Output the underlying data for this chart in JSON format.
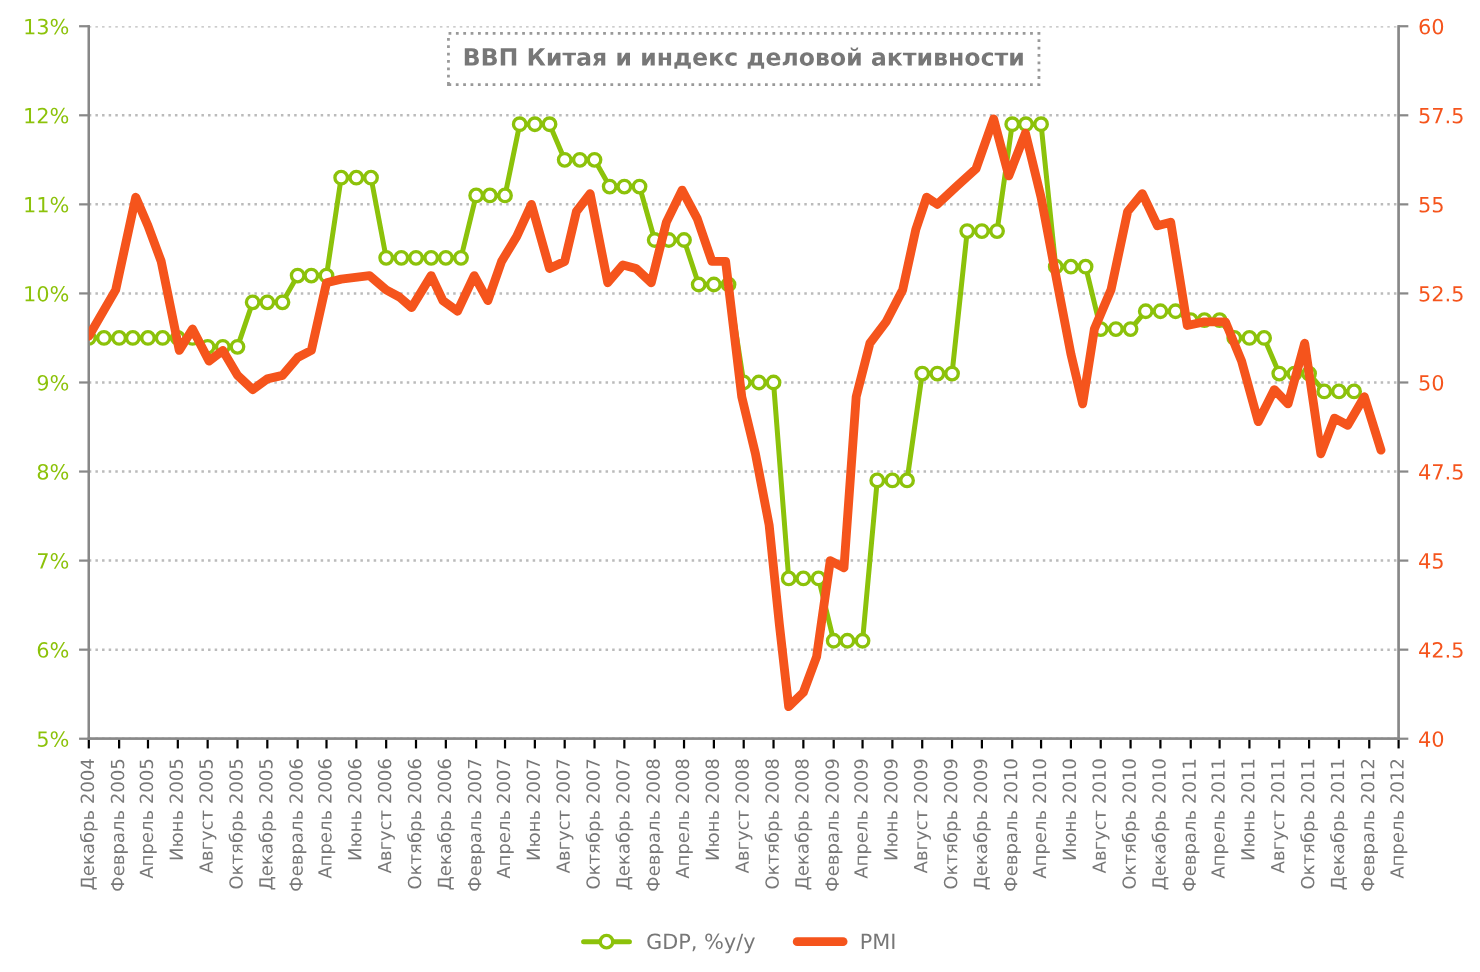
{
  "chart_data": {
    "type": "line",
    "title": "ВВП Китая и индекс деловой активности",
    "xlim": [
      "2004-12",
      "2012-04"
    ],
    "xticks": [
      {
        "value": "2004-12",
        "label": "Декабрь 2004"
      },
      {
        "value": "2005-02",
        "label": "Февраль 2005"
      },
      {
        "value": "2005-04",
        "label": "Апрель 2005"
      },
      {
        "value": "2005-06",
        "label": "Июнь 2005"
      },
      {
        "value": "2005-08",
        "label": "Август 2005"
      },
      {
        "value": "2005-10",
        "label": "Октябрь 2005"
      },
      {
        "value": "2005-12",
        "label": "Декабрь 2005"
      },
      {
        "value": "2006-02",
        "label": "Февраль 2006"
      },
      {
        "value": "2006-04",
        "label": "Апрель 2006"
      },
      {
        "value": "2006-06",
        "label": "Июнь 2006"
      },
      {
        "value": "2006-08",
        "label": "Август 2006"
      },
      {
        "value": "2006-10",
        "label": "Октябрь 2006"
      },
      {
        "value": "2006-12",
        "label": "Декабрь 2006"
      },
      {
        "value": "2007-02",
        "label": "Февраль 2007"
      },
      {
        "value": "2007-04",
        "label": "Апрель 2007"
      },
      {
        "value": "2007-06",
        "label": "Июнь 2007"
      },
      {
        "value": "2007-08",
        "label": "Август 2007"
      },
      {
        "value": "2007-10",
        "label": "Октябрь 2007"
      },
      {
        "value": "2007-12",
        "label": "Декабрь 2007"
      },
      {
        "value": "2008-02",
        "label": "Февраль 2008"
      },
      {
        "value": "2008-04",
        "label": "Апрель 2008"
      },
      {
        "value": "2008-06",
        "label": "Июнь 2008"
      },
      {
        "value": "2008-08",
        "label": "Август 2008"
      },
      {
        "value": "2008-10",
        "label": "Октябрь 2008"
      },
      {
        "value": "2008-12",
        "label": "Декабрь 2008"
      },
      {
        "value": "2009-02",
        "label": "Февраль 2009"
      },
      {
        "value": "2009-04",
        "label": "Апрель 2009"
      },
      {
        "value": "2009-06",
        "label": "Июнь 2009"
      },
      {
        "value": "2009-08",
        "label": "Август 2009"
      },
      {
        "value": "2009-10",
        "label": "Октябрь 2009"
      },
      {
        "value": "2009-12",
        "label": "Декабрь 2009"
      },
      {
        "value": "2010-02",
        "label": "Февраль 2010"
      },
      {
        "value": "2010-04",
        "label": "Апрель 2010"
      },
      {
        "value": "2010-06",
        "label": "Июнь 2010"
      },
      {
        "value": "2010-08",
        "label": "Август 2010"
      },
      {
        "value": "2010-10",
        "label": "Октябрь 2010"
      },
      {
        "value": "2010-12",
        "label": "Декабрь 2010"
      },
      {
        "value": "2011-02",
        "label": "Февраль 2011"
      },
      {
        "value": "2011-04",
        "label": "Апрель 2011"
      },
      {
        "value": "2011-06",
        "label": "Июнь 2011"
      },
      {
        "value": "2011-08",
        "label": "Август 2011"
      },
      {
        "value": "2011-10",
        "label": "Октябрь 2011"
      },
      {
        "value": "2011-12",
        "label": "Декабрь 2011"
      },
      {
        "value": "2012-02",
        "label": "Февраль 2012"
      },
      {
        "value": "2012-04",
        "label": "Апрель 2012"
      }
    ],
    "ylim": [
      5,
      13
    ],
    "yticks": [
      {
        "value": 5,
        "label": "5%"
      },
      {
        "value": 6,
        "label": "6%"
      },
      {
        "value": 7,
        "label": "7%"
      },
      {
        "value": 8,
        "label": "8%"
      },
      {
        "value": 9,
        "label": "9%"
      },
      {
        "value": 10,
        "label": "10%"
      },
      {
        "value": 11,
        "label": "11%"
      },
      {
        "value": 12,
        "label": "12%"
      },
      {
        "value": 13,
        "label": "13%"
      }
    ],
    "y2lim": [
      40,
      60
    ],
    "y2ticks": [
      40,
      42.5,
      45,
      47.5,
      50,
      52.5,
      55,
      57.5,
      60
    ],
    "grid": "y",
    "legend": "bottom",
    "series": [
      {
        "name": "GDP, %y/y",
        "color": "#8cc20a",
        "marker": "circle",
        "x": [
          "2004-12",
          "2005-01",
          "2005-02",
          "2005-03",
          "2005-04",
          "2005-05",
          "2005-06",
          "2005-07",
          "2005-08",
          "2005-09",
          "2005-10",
          "2005-11",
          "2005-12",
          "2006-01",
          "2006-02",
          "2006-03",
          "2006-04",
          "2006-05",
          "2006-06",
          "2006-07",
          "2006-08",
          "2006-09",
          "2006-10",
          "2006-11",
          "2006-12",
          "2007-01",
          "2007-02",
          "2007-03",
          "2007-04",
          "2007-05",
          "2007-06",
          "2007-07",
          "2007-08",
          "2007-09",
          "2007-10",
          "2007-11",
          "2007-12",
          "2008-01",
          "2008-02",
          "2008-03",
          "2008-04",
          "2008-05",
          "2008-06",
          "2008-07",
          "2008-08",
          "2008-09",
          "2008-10",
          "2008-11",
          "2008-12",
          "2009-01",
          "2009-02",
          "2009-03",
          "2009-04",
          "2009-05",
          "2009-06",
          "2009-07",
          "2009-08",
          "2009-09",
          "2009-10",
          "2009-11",
          "2009-12",
          "2010-01",
          "2010-02",
          "2010-03",
          "2010-04",
          "2010-05",
          "2010-06",
          "2010-07",
          "2010-08",
          "2010-09",
          "2010-10",
          "2010-11",
          "2010-12",
          "2011-01",
          "2011-02",
          "2011-03",
          "2011-04",
          "2011-05",
          "2011-06",
          "2011-07",
          "2011-08",
          "2011-09",
          "2011-10",
          "2011-11",
          "2011-12",
          "2012-01"
        ],
        "values": [
          9.5,
          9.5,
          9.5,
          9.5,
          9.5,
          9.5,
          9.5,
          9.5,
          9.4,
          9.4,
          9.4,
          9.9,
          9.9,
          9.9,
          10.2,
          10.2,
          10.2,
          11.3,
          11.3,
          11.3,
          10.4,
          10.4,
          10.4,
          10.4,
          10.4,
          10.4,
          11.1,
          11.1,
          11.1,
          11.9,
          11.9,
          11.9,
          11.5,
          11.5,
          11.5,
          11.2,
          11.2,
          11.2,
          10.6,
          10.6,
          10.6,
          10.1,
          10.1,
          10.1,
          9.0,
          9.0,
          9.0,
          6.8,
          6.8,
          6.8,
          6.1,
          6.1,
          6.1,
          7.9,
          7.9,
          7.9,
          9.1,
          9.1,
          9.1,
          10.7,
          10.7,
          10.7,
          11.9,
          11.9,
          11.9,
          10.3,
          10.3,
          10.3,
          9.6,
          9.6,
          9.6,
          9.8,
          9.8,
          9.8,
          9.7,
          9.7,
          9.7,
          9.5,
          9.5,
          9.5,
          9.1,
          9.1,
          9.1,
          8.9,
          8.9,
          8.9
        ]
      },
      {
        "name": "PMI",
        "color": "#f5541c",
        "axis": "y2",
        "x": [
          "2004-12-01",
          "2005-01-25",
          "2005-03-07",
          "2005-04-01",
          "2005-04-28",
          "2005-06-04",
          "2005-07-01",
          "2005-08-04",
          "2005-09-01",
          "2005-10-01",
          "2005-11-01",
          "2005-12-01",
          "2006-01-01",
          "2006-02-01",
          "2006-03-01",
          "2006-04-01",
          "2006-05-01",
          "2006-06-28",
          "2006-08-01",
          "2006-08-28",
          "2006-09-22",
          "2006-11-01",
          "2006-11-25",
          "2006-12-25",
          "2007-01-28",
          "2007-02-25",
          "2007-03-25",
          "2007-04-25",
          "2007-05-25",
          "2007-07-01",
          "2007-08-01",
          "2007-08-25",
          "2007-09-22",
          "2007-10-28",
          "2007-11-28",
          "2007-12-25",
          "2008-01-25",
          "2008-02-25",
          "2008-03-28",
          "2008-04-28",
          "2008-05-28",
          "2008-06-25",
          "2008-07-28",
          "2008-08-25",
          "2008-09-22",
          "2008-10-13",
          "2008-11-01",
          "2008-12-01",
          "2008-12-28",
          "2009-01-25",
          "2009-02-22",
          "2009-03-19",
          "2009-04-16",
          "2009-05-19",
          "2009-06-22",
          "2009-07-19",
          "2009-08-10",
          "2009-09-01",
          "2009-10-10",
          "2009-11-19",
          "2009-12-25",
          "2010-01-25",
          "2010-02-28",
          "2010-04-01",
          "2010-05-04",
          "2010-06-01",
          "2010-06-25",
          "2010-07-19",
          "2010-08-22",
          "2010-09-25",
          "2010-10-25",
          "2010-11-25",
          "2010-12-22",
          "2011-01-25",
          "2011-02-28",
          "2011-04-13",
          "2011-05-16",
          "2011-06-19",
          "2011-07-22",
          "2011-08-19",
          "2011-09-22",
          "2011-10-25",
          "2011-11-22",
          "2011-12-19",
          "2012-01-22",
          "2012-02-25"
        ],
        "values": [
          51.3,
          52.6,
          55.2,
          54.4,
          53.4,
          50.9,
          51.5,
          50.6,
          50.9,
          50.2,
          49.8,
          50.1,
          50.2,
          50.7,
          50.9,
          52.8,
          52.9,
          53.0,
          52.6,
          52.4,
          52.1,
          53.0,
          52.3,
          52.0,
          53.0,
          52.3,
          53.4,
          54.1,
          55.0,
          53.2,
          53.4,
          54.8,
          55.3,
          52.8,
          53.3,
          53.2,
          52.8,
          54.5,
          55.4,
          54.6,
          53.4,
          53.4,
          49.6,
          48.0,
          46.0,
          43.2,
          40.9,
          41.3,
          42.3,
          45.0,
          44.8,
          49.6,
          51.1,
          51.7,
          52.6,
          54.3,
          55.2,
          55.0,
          55.5,
          56.0,
          57.4,
          55.8,
          57.0,
          55.2,
          52.8,
          50.8,
          49.4,
          51.5,
          52.6,
          54.8,
          55.3,
          54.4,
          54.5,
          51.6,
          51.7,
          51.7,
          50.6,
          48.9,
          49.8,
          49.4,
          51.1,
          48.0,
          49.0,
          48.8,
          49.6,
          48.1
        ]
      }
    ]
  }
}
